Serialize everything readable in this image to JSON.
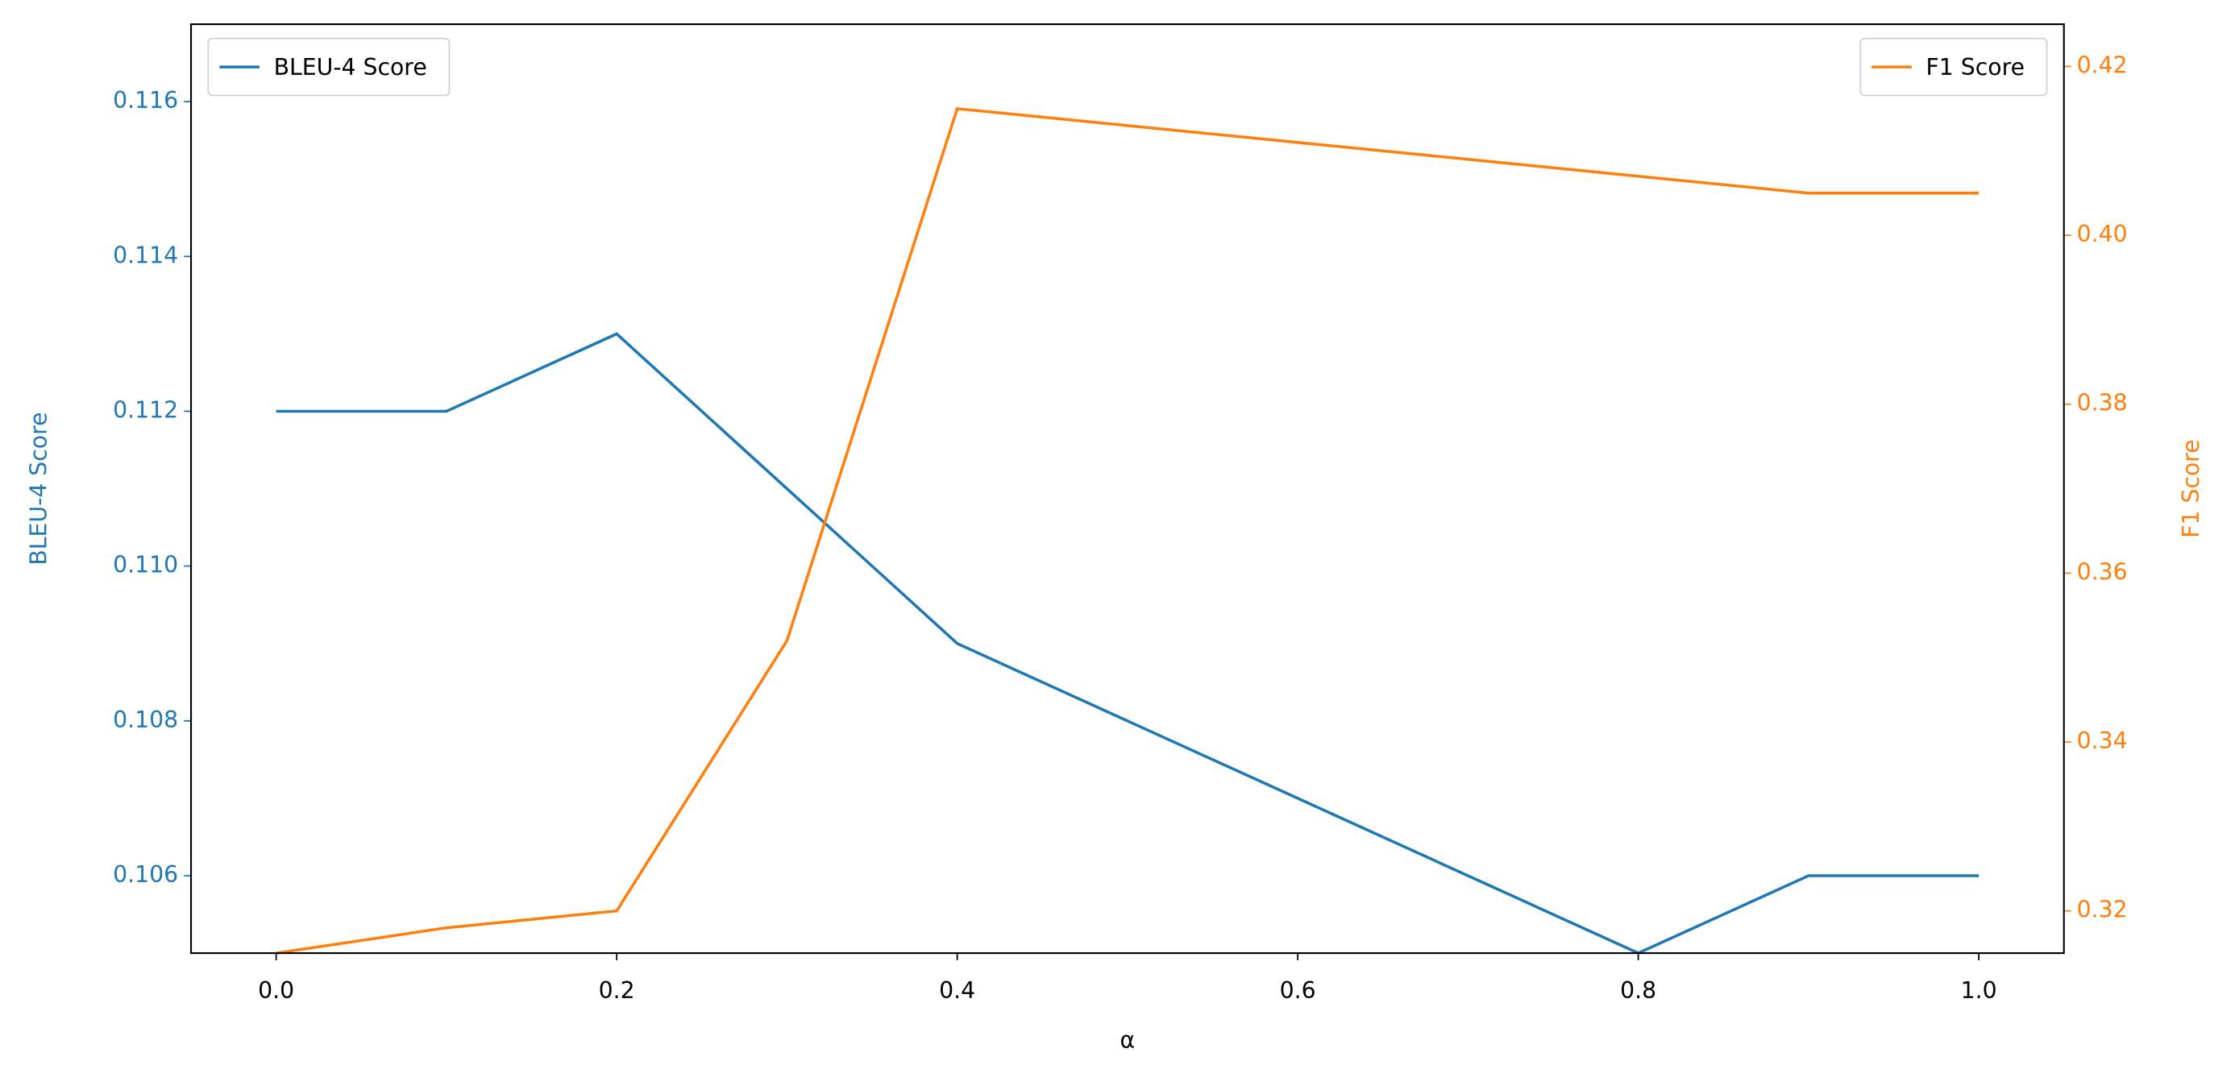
{
  "chart_data": {
    "type": "line",
    "x_label": "α",
    "y_label": "BLEU-4 Score",
    "y2_label": "F1 Score",
    "x": [
      0,
      0.1,
      0.2,
      0.3,
      0.4,
      0.5,
      0.6,
      0.7,
      0.8,
      0.9,
      1.0
    ],
    "series": [
      {
        "name": "BLEU-4 Score",
        "color": "#1f77b4",
        "axis": "y",
        "values": [
          0.112,
          0.112,
          0.113,
          0.111,
          0.109,
          0.108,
          0.107,
          0.106,
          0.105,
          0.106,
          0.106
        ],
        "legend": "upper left"
      },
      {
        "name": "F1 Score",
        "color": "#ff7f0e",
        "axis": "y2",
        "values": [
          0.315,
          0.318,
          0.32,
          0.352,
          0.415,
          0.413,
          0.411,
          0.409,
          0.407,
          0.405,
          0.405
        ],
        "legend": "upper right"
      }
    ],
    "xlim": [
      -0.05,
      1.05
    ],
    "xticks": [
      {
        "value": 0,
        "label": "0.0"
      },
      0.2,
      0.4,
      0.6,
      0.8,
      {
        "value": 1,
        "label": "1.0"
      }
    ],
    "ylim": [
      0.105,
      0.117
    ],
    "yticks": [
      0.106,
      0.108,
      {
        "value": 0.11,
        "label": "0.110"
      },
      0.112,
      0.114,
      0.116
    ],
    "y2lim": [
      0.315,
      0.425
    ],
    "y2ticks": [
      0.32,
      0.34,
      0.36,
      0.38,
      {
        "value": 0.4,
        "label": "0.40"
      },
      0.42
    ],
    "grid": false
  }
}
